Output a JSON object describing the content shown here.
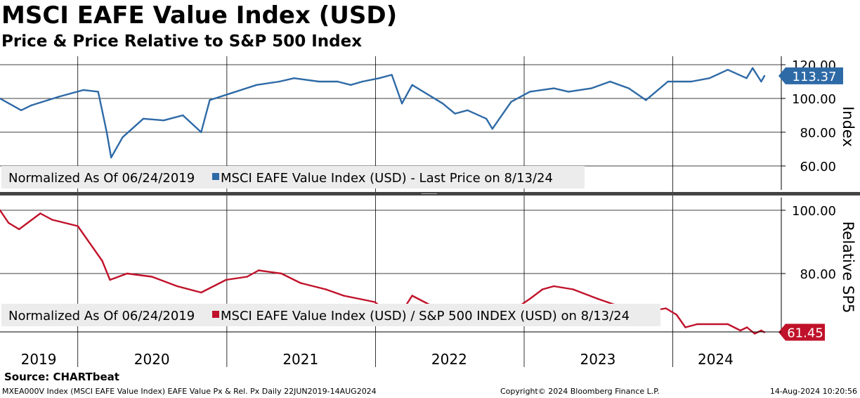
{
  "header": {
    "title": "MSCI EAFE Value Index (USD)",
    "subtitle": "Price & Price Relative to S&P 500 Index"
  },
  "footer": {
    "source": "Source: CHARTbeat",
    "left": "MXEA000V Index (MSCI EAFE Value Index) EAFE Value Px & Rel. Px  Daily 22JUN2019-14AUG2024",
    "center": "Copyright© 2024 Bloomberg Finance L.P.",
    "right": "14-Aug-2024 10:20:56"
  },
  "x_axis": {
    "year_labels": [
      "2019",
      "2020",
      "2021",
      "2022",
      "2023",
      "2024"
    ]
  },
  "colors": {
    "price": "#2e6aa6",
    "relative": "#c0122a",
    "legend_bg": "#ececec",
    "divider": "#444444"
  },
  "chart_data": [
    {
      "type": "line",
      "ylabel": "Index",
      "ylim": [
        46,
        122
      ],
      "yticks": [
        60,
        80,
        100,
        120
      ],
      "ytick_labels": [
        "60.00",
        "80.00",
        "100.00",
        "120.00"
      ],
      "legend": {
        "prefix": "Normalized As Of 06/24/2019",
        "entry": "MSCI EAFE Value Index (USD) - Last Price on 8/13/24"
      },
      "last_value_label": "113.37",
      "grid": true,
      "series": [
        {
          "name": "MSCI EAFE Value Index (USD) - Last Price on 8/13/24",
          "color": "#2e6aa6",
          "x": [
            "2019-06-24",
            "2019-08-15",
            "2019-09-10",
            "2019-11-15",
            "2020-01-15",
            "2020-02-20",
            "2020-03-12",
            "2020-03-23",
            "2020-04-20",
            "2020-06-10",
            "2020-07-30",
            "2020-09-15",
            "2020-10-30",
            "2020-11-20",
            "2021-01-10",
            "2021-03-15",
            "2021-05-10",
            "2021-06-15",
            "2021-08-15",
            "2021-09-30",
            "2021-11-01",
            "2021-11-30",
            "2022-01-10",
            "2022-02-10",
            "2022-03-07",
            "2022-04-01",
            "2022-06-15",
            "2022-07-15",
            "2022-08-15",
            "2022-09-30",
            "2022-10-15",
            "2022-11-30",
            "2023-01-15",
            "2023-03-15",
            "2023-04-20",
            "2023-06-15",
            "2023-07-31",
            "2023-09-15",
            "2023-10-27",
            "2023-12-20",
            "2024-02-15",
            "2024-03-31",
            "2024-05-15",
            "2024-06-30",
            "2024-07-15",
            "2024-08-05",
            "2024-08-13"
          ],
          "y": [
            100,
            93,
            96,
            101,
            105,
            104,
            80,
            65,
            77,
            88,
            87,
            90,
            80,
            99,
            103,
            108,
            110,
            112,
            110,
            110,
            108,
            110,
            112,
            114,
            97,
            108,
            97,
            91,
            93,
            88,
            82,
            98,
            104,
            106,
            104,
            106,
            110,
            106,
            99,
            110,
            110,
            112,
            117,
            112,
            118,
            110,
            113.37
          ]
        }
      ]
    },
    {
      "type": "line",
      "ylabel": "Relative SP5",
      "ylim": [
        55,
        104
      ],
      "yticks": [
        80,
        100
      ],
      "ytick_labels": [
        "80.00",
        "100.00"
      ],
      "legend": {
        "prefix": "Normalized As Of 06/24/2019",
        "entry": "MSCI EAFE Value Index (USD) / S&P 500 INDEX (USD) on 8/13/24"
      },
      "last_value_label": "61.45",
      "grid": true,
      "series": [
        {
          "name": "MSCI EAFE Value Index (USD) / S&P 500 INDEX (USD) on 8/13/24",
          "color": "#c0122a",
          "x": [
            "2019-06-24",
            "2019-07-15",
            "2019-08-10",
            "2019-10-01",
            "2019-10-30",
            "2020-01-01",
            "2020-03-01",
            "2020-03-20",
            "2020-05-01",
            "2020-07-01",
            "2020-09-01",
            "2020-10-30",
            "2020-12-30",
            "2021-02-20",
            "2021-03-20",
            "2021-05-15",
            "2021-07-01",
            "2021-09-01",
            "2021-10-15",
            "2021-12-30",
            "2022-01-20",
            "2022-02-15",
            "2022-03-07",
            "2022-04-01",
            "2022-06-15",
            "2022-08-01",
            "2022-09-01",
            "2022-10-10",
            "2022-11-01",
            "2022-12-01",
            "2023-01-15",
            "2023-02-15",
            "2023-03-15",
            "2023-05-01",
            "2023-07-01",
            "2023-08-15",
            "2023-10-30",
            "2023-12-15",
            "2024-01-10",
            "2024-02-01",
            "2024-03-01",
            "2024-05-15",
            "2024-06-15",
            "2024-07-01",
            "2024-07-20",
            "2024-08-05",
            "2024-08-13"
          ],
          "y": [
            100,
            96,
            94,
            99,
            97,
            95,
            84,
            78,
            80,
            79,
            76,
            74,
            78,
            79,
            81,
            80,
            77,
            75,
            73,
            71,
            69,
            66,
            68,
            73,
            68,
            70,
            69,
            66,
            66,
            68,
            72,
            75,
            76,
            75,
            72,
            70,
            68,
            69,
            67,
            63,
            64,
            64,
            62,
            63,
            61,
            62,
            61.45
          ]
        }
      ]
    }
  ]
}
